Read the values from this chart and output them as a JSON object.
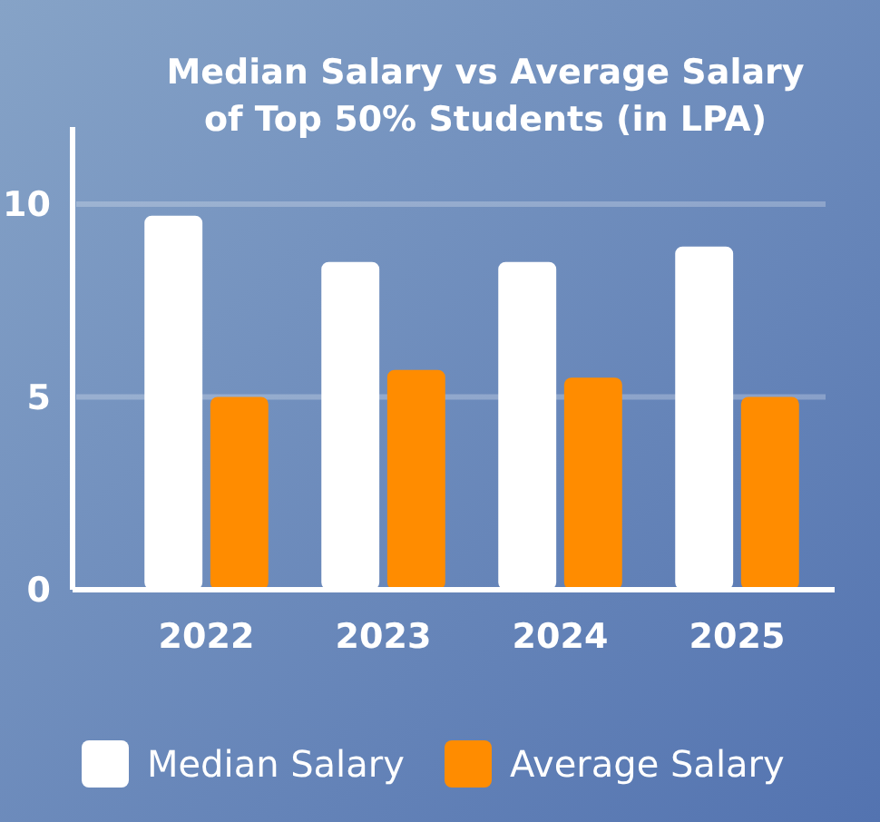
{
  "chart_data": {
    "type": "bar",
    "title": "Median Salary vs Average Salary\nof Top 50% Students (in LPA)",
    "categories": [
      "2022",
      "2023",
      "2024",
      "2025"
    ],
    "series": [
      {
        "name": "Median Salary",
        "color": "#ffffff",
        "values": [
          9.7,
          8.5,
          8.5,
          8.9
        ]
      },
      {
        "name": "Average Salary",
        "color": "#ff8c00",
        "values": [
          5.0,
          5.7,
          5.5,
          5.0
        ]
      }
    ],
    "ylim": [
      0,
      12
    ],
    "yticks": [
      0,
      5,
      10
    ],
    "grid": "y",
    "legend": "bottom"
  }
}
